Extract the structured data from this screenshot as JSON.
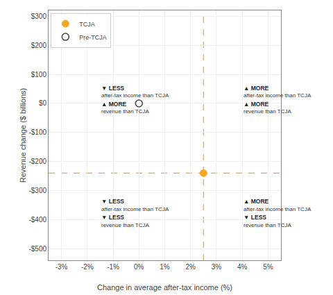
{
  "chart_data": {
    "type": "scatter",
    "xlabel": "Change in average after-tax income (%)",
    "ylabel": "Revenue change ($ billions)",
    "xlim": [
      -3.5,
      5.5
    ],
    "ylim": [
      -540,
      320
    ],
    "xticks": [
      {
        "value": -3,
        "label": "-3%"
      },
      {
        "value": -2,
        "label": "-2%"
      },
      {
        "value": -1,
        "label": "-1%"
      },
      {
        "value": 0,
        "label": "0%"
      },
      {
        "value": 1,
        "label": "1%"
      },
      {
        "value": 2,
        "label": "2%"
      },
      {
        "value": 3,
        "label": "3%"
      },
      {
        "value": 4,
        "label": "4%"
      },
      {
        "value": 5,
        "label": "5%"
      }
    ],
    "yticks": [
      {
        "value": -500,
        "label": "-$500"
      },
      {
        "value": -400,
        "label": "-$400"
      },
      {
        "value": -300,
        "label": "-$300"
      },
      {
        "value": -200,
        "label": "-$200"
      },
      {
        "value": -100,
        "label": "-$100"
      },
      {
        "value": 0,
        "label": "$0"
      },
      {
        "value": 100,
        "label": "$100"
      },
      {
        "value": 200,
        "label": "$200"
      },
      {
        "value": 300,
        "label": "$300"
      }
    ],
    "grid": true,
    "legend": "upper left",
    "series": [
      {
        "name": "TCJA",
        "color": "#F5A623",
        "x": [
          2.5
        ],
        "values": [
          -240
        ]
      },
      {
        "name": "Pre-TCJA",
        "color": "#ffffff",
        "x": [
          0.0
        ],
        "values": [
          0.0
        ]
      }
    ],
    "annotations": [
      {
        "x": -1.5,
        "y": 70,
        "text": "▼ LESS"
      },
      {
        "x": -1.5,
        "y": 42,
        "text": "after-tax income than TCJA"
      },
      {
        "x": -1.5,
        "y": 15,
        "text": "▲ MORE"
      },
      {
        "x": -1.5,
        "y": -13,
        "text": "revenue than TCJA"
      },
      {
        "x": 4.0,
        "y": 70,
        "text": "▲ MORE"
      },
      {
        "x": 4.0,
        "y": 42,
        "text": "after-tax income than TCJA"
      },
      {
        "x": 4.0,
        "y": 15,
        "text": "▲ MORE"
      },
      {
        "x": 4.0,
        "y": -13,
        "text": "revenue than TCJA"
      },
      {
        "x": -1.5,
        "y": -320,
        "text": "▼ LESS"
      },
      {
        "x": -1.5,
        "y": -348,
        "text": "after-tax income than TCJA"
      },
      {
        "x": -1.5,
        "y": -375,
        "text": "▼ LESS"
      },
      {
        "x": -1.5,
        "y": -403,
        "text": "revenue than TCJA"
      },
      {
        "x": 4.0,
        "y": -320,
        "text": "▲ MORE"
      },
      {
        "x": 4.0,
        "y": -348,
        "text": "after-tax income than TCJA"
      },
      {
        "x": 4.0,
        "y": -375,
        "text": "▼ LESS"
      },
      {
        "x": 4.0,
        "y": -403,
        "text": "revenue than TCJA"
      }
    ]
  }
}
